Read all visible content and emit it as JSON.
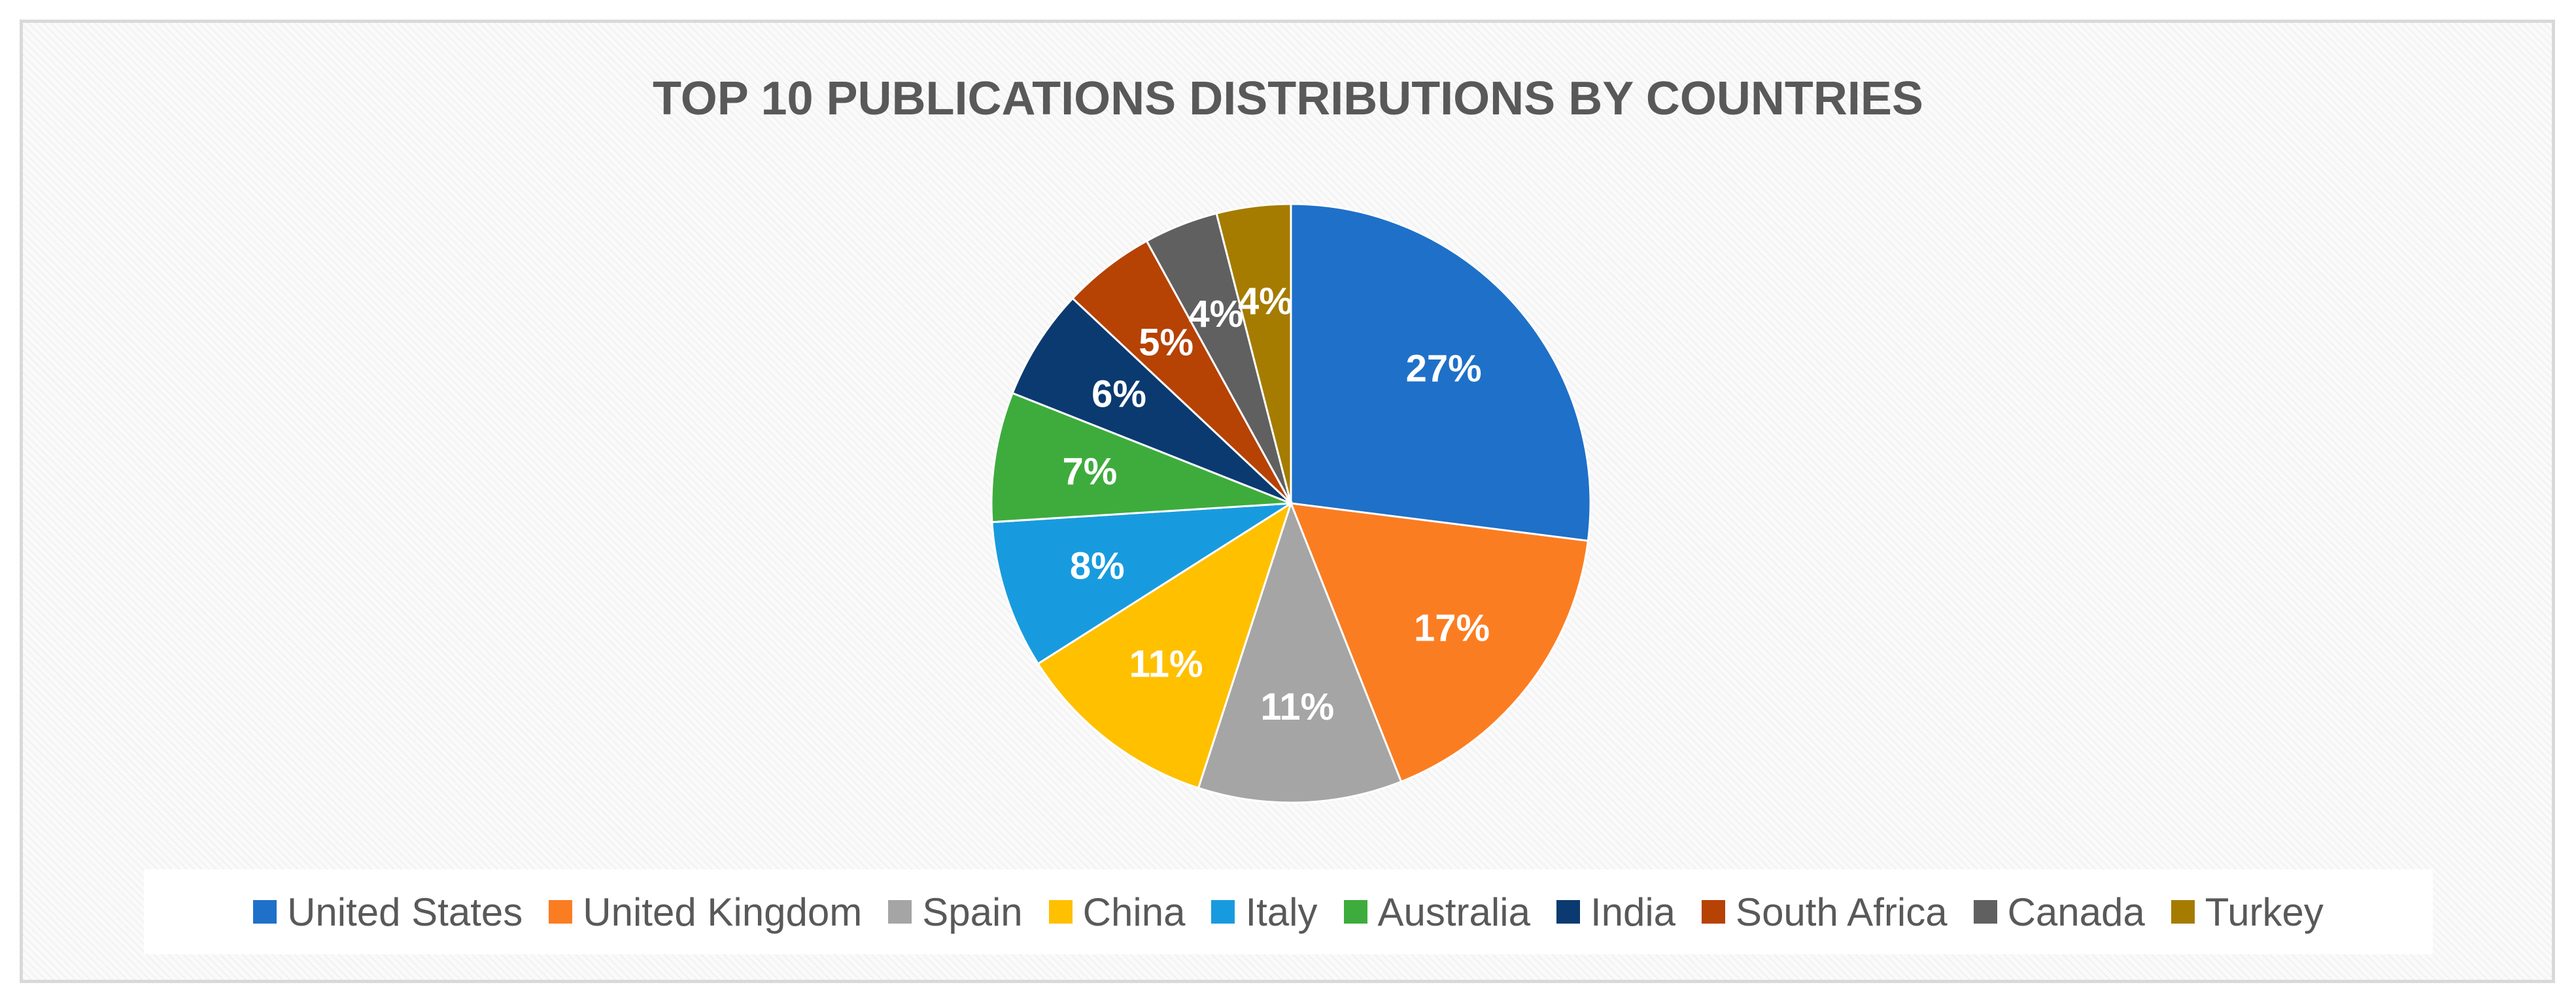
{
  "chart_data": {
    "type": "pie",
    "title": "TOP 10 PUBLICATIONS DISTRIBUTIONS BY COUNTRIES",
    "categories": [
      "United States",
      "United Kingdom",
      "Spain",
      "China",
      "Italy",
      "Australia",
      "India",
      "South Africa",
      "Canada",
      "Turkey"
    ],
    "values": [
      27,
      17,
      11,
      11,
      8,
      7,
      6,
      5,
      4,
      4
    ],
    "labels": [
      "27%",
      "17%",
      "11%",
      "11%",
      "8%",
      "7%",
      "6%",
      "5%",
      "4%",
      "4%"
    ],
    "colors": [
      "#1f70c8",
      "#fb7d22",
      "#a5a5a5",
      "#ffc000",
      "#189bde",
      "#3eac3c",
      "#0b3a70",
      "#b64204",
      "#606060",
      "#a57c00"
    ],
    "legend_position": "bottom",
    "grid": false
  }
}
